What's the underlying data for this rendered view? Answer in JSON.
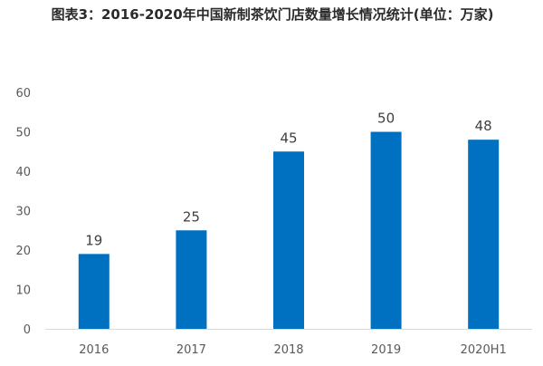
{
  "chart_data": {
    "type": "bar",
    "title": "图表3：2016-2020年中国新制茶饮门店数量增长情况统计(单位：万家)",
    "categories": [
      "2016",
      "2017",
      "2018",
      "2019",
      "2020H1"
    ],
    "values": [
      19,
      25,
      45,
      50,
      48
    ],
    "xlabel": "",
    "ylabel": "",
    "ylim": [
      0,
      60
    ],
    "yticks": [
      "0",
      "10",
      "20",
      "30",
      "40",
      "50",
      "60"
    ],
    "grid": false,
    "legend": "none",
    "bar_color": "#0070C0",
    "axis_color": "#d9d9d9"
  }
}
